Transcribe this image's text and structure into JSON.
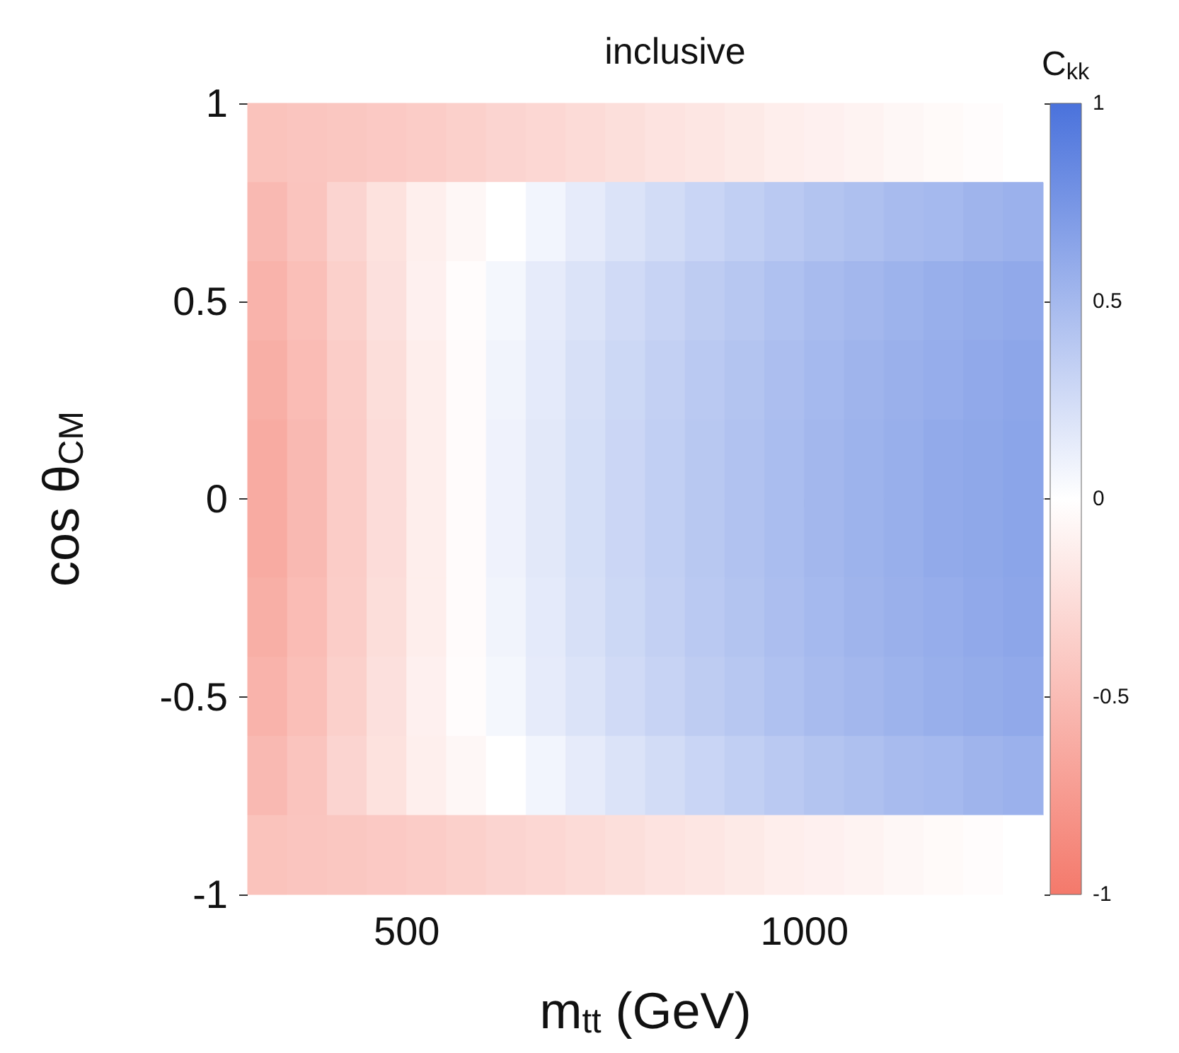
{
  "chart_data": {
    "type": "heatmap",
    "title": "inclusive",
    "xlabel": "m$_{tt}$ (GeV)",
    "ylabel": "cos θ$_{CM}$",
    "clabel": "C$_{kk}$",
    "x": [
      325,
      375,
      425,
      475,
      525,
      575,
      625,
      675,
      725,
      775,
      825,
      875,
      925,
      975,
      1025,
      1075,
      1125,
      1175,
      1225,
      1275
    ],
    "y": [
      0.9,
      0.7,
      0.5,
      0.3,
      0.1,
      -0.1,
      -0.3,
      -0.5,
      -0.7,
      -0.9
    ],
    "xlim": [
      300,
      1300
    ],
    "xticks": [
      500,
      1000
    ],
    "ylim": [
      -1,
      1
    ],
    "yticks": [
      -1,
      -0.5,
      0,
      0.5,
      1
    ],
    "clim": [
      -1,
      1
    ],
    "cticks": [
      -1,
      -0.5,
      0,
      0.5,
      1
    ],
    "colors": [
      "#f4796b",
      "#ffffff",
      "#4a72dc"
    ],
    "cells": [
      [
        -0.45,
        -0.43,
        -0.42,
        -0.4,
        -0.38,
        -0.35,
        -0.32,
        -0.3,
        -0.27,
        -0.24,
        -0.21,
        -0.19,
        -0.16,
        -0.13,
        -0.11,
        -0.09,
        -0.06,
        -0.04,
        -0.02,
        0.0
      ],
      [
        -0.52,
        -0.44,
        -0.32,
        -0.22,
        -0.12,
        -0.06,
        0.0,
        0.07,
        0.14,
        0.2,
        0.25,
        0.3,
        0.34,
        0.38,
        0.42,
        0.45,
        0.48,
        0.5,
        0.53,
        0.55
      ],
      [
        -0.57,
        -0.48,
        -0.35,
        -0.23,
        -0.11,
        -0.02,
        0.06,
        0.14,
        0.2,
        0.26,
        0.31,
        0.36,
        0.4,
        0.44,
        0.48,
        0.51,
        0.54,
        0.57,
        0.59,
        0.61
      ],
      [
        -0.6,
        -0.5,
        -0.37,
        -0.25,
        -0.13,
        -0.03,
        0.08,
        0.15,
        0.22,
        0.28,
        0.33,
        0.38,
        0.42,
        0.46,
        0.5,
        0.53,
        0.56,
        0.58,
        0.61,
        0.63
      ],
      [
        -0.63,
        -0.52,
        -0.38,
        -0.26,
        -0.13,
        -0.03,
        0.09,
        0.16,
        0.23,
        0.29,
        0.34,
        0.39,
        0.43,
        0.47,
        0.51,
        0.54,
        0.57,
        0.6,
        0.62,
        0.64
      ],
      [
        -0.63,
        -0.52,
        -0.38,
        -0.26,
        -0.13,
        -0.03,
        0.09,
        0.16,
        0.23,
        0.29,
        0.34,
        0.39,
        0.43,
        0.47,
        0.51,
        0.54,
        0.57,
        0.6,
        0.62,
        0.64
      ],
      [
        -0.6,
        -0.5,
        -0.37,
        -0.25,
        -0.13,
        -0.03,
        0.08,
        0.15,
        0.22,
        0.28,
        0.33,
        0.38,
        0.42,
        0.46,
        0.5,
        0.53,
        0.56,
        0.58,
        0.61,
        0.63
      ],
      [
        -0.57,
        -0.48,
        -0.35,
        -0.23,
        -0.11,
        -0.02,
        0.06,
        0.14,
        0.2,
        0.26,
        0.31,
        0.36,
        0.4,
        0.44,
        0.48,
        0.51,
        0.54,
        0.57,
        0.59,
        0.61
      ],
      [
        -0.52,
        -0.44,
        -0.32,
        -0.22,
        -0.12,
        -0.06,
        0.0,
        0.07,
        0.14,
        0.2,
        0.25,
        0.3,
        0.34,
        0.38,
        0.42,
        0.45,
        0.48,
        0.5,
        0.53,
        0.55
      ],
      [
        -0.45,
        -0.43,
        -0.42,
        -0.4,
        -0.38,
        -0.35,
        -0.32,
        -0.3,
        -0.27,
        -0.24,
        -0.21,
        -0.19,
        -0.16,
        -0.13,
        -0.11,
        -0.09,
        -0.06,
        -0.04,
        -0.02,
        0.0
      ]
    ]
  }
}
